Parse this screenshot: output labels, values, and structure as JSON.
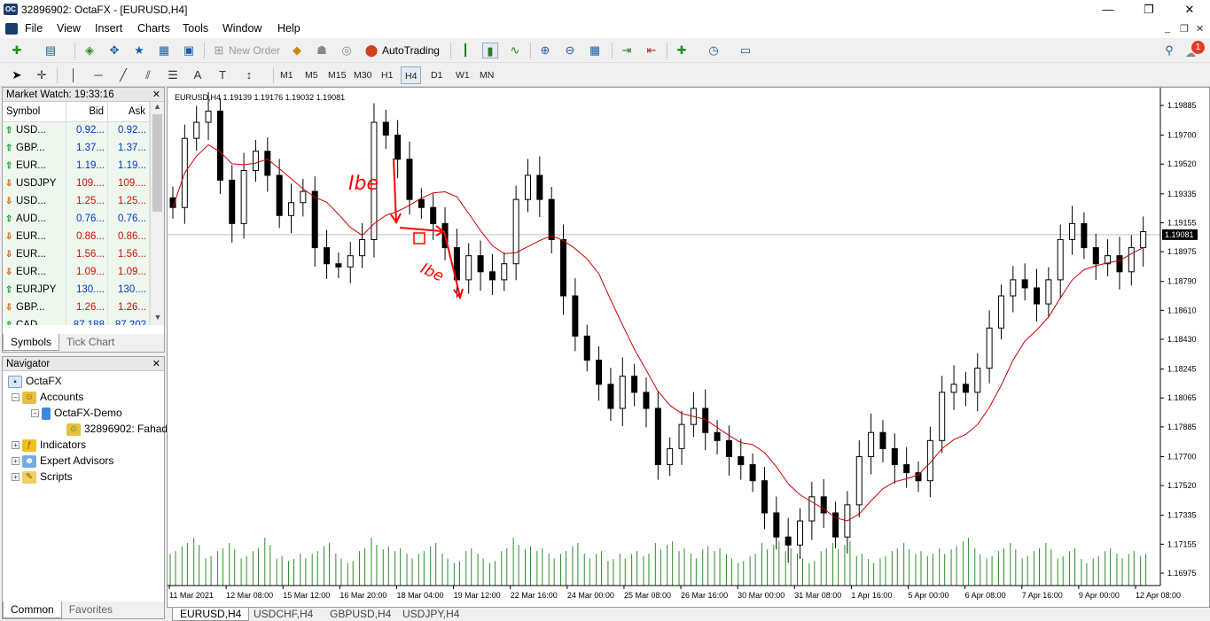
{
  "window": {
    "title": "32896902: OctaFX - [EURUSD,H4]",
    "app_icon_text": "OC",
    "controls": {
      "minimize": "—",
      "maximize": "❐",
      "close": "✕"
    }
  },
  "menu": {
    "items": [
      "File",
      "View",
      "Insert",
      "Charts",
      "Tools",
      "Window",
      "Help"
    ],
    "mdi": {
      "minimize": "_",
      "restore": "❐",
      "close": "✕"
    }
  },
  "toolbar": {
    "new_order_label": "New Order",
    "autotrading_label": "AutoTrading",
    "notification_count": "1",
    "timeframes": [
      "M1",
      "M5",
      "M15",
      "M30",
      "H1",
      "H4",
      "D1",
      "W1",
      "MN"
    ],
    "active_timeframe": "H4"
  },
  "market_watch": {
    "title": "Market Watch: 19:33:16",
    "columns": [
      "Symbol",
      "Bid",
      "Ask"
    ],
    "rows": [
      {
        "symbol": "USD...",
        "bid": "0.92...",
        "ask": "0.92...",
        "dir": "up",
        "color": "blue"
      },
      {
        "symbol": "GBP...",
        "bid": "1.37...",
        "ask": "1.37...",
        "dir": "up",
        "color": "blue"
      },
      {
        "symbol": "EUR...",
        "bid": "1.19...",
        "ask": "1.19...",
        "dir": "up",
        "color": "blue"
      },
      {
        "symbol": "USDJPY",
        "bid": "109....",
        "ask": "109....",
        "dir": "down",
        "color": "red"
      },
      {
        "symbol": "USD...",
        "bid": "1.25...",
        "ask": "1.25...",
        "dir": "down",
        "color": "red"
      },
      {
        "symbol": "AUD...",
        "bid": "0.76...",
        "ask": "0.76...",
        "dir": "up",
        "color": "blue"
      },
      {
        "symbol": "EUR...",
        "bid": "0.86...",
        "ask": "0.86...",
        "dir": "down",
        "color": "red"
      },
      {
        "symbol": "EUR...",
        "bid": "1.56...",
        "ask": "1.56...",
        "dir": "down",
        "color": "red"
      },
      {
        "symbol": "EUR...",
        "bid": "1.09...",
        "ask": "1.09...",
        "dir": "down",
        "color": "red"
      },
      {
        "symbol": "EURJPY",
        "bid": "130....",
        "ask": "130....",
        "dir": "up",
        "color": "blue"
      },
      {
        "symbol": "GBP...",
        "bid": "1.26...",
        "ask": "1.26...",
        "dir": "down",
        "color": "red"
      },
      {
        "symbol": "CAD...",
        "bid": "87.188",
        "ask": "87.202",
        "dir": "up",
        "color": "blue"
      }
    ],
    "tabs": [
      "Symbols",
      "Tick Chart"
    ]
  },
  "navigator": {
    "title": "Navigator",
    "root": "OctaFX",
    "accounts": "Accounts",
    "account_name": "OctaFX-Demo",
    "account_user": "32896902: Fahad",
    "indicators": "Indicators",
    "expert_advisors": "Expert Advisors",
    "scripts": "Scripts",
    "tabs": [
      "Common",
      "Favorites"
    ]
  },
  "chart_data": {
    "type": "candlestick",
    "symbol_header": "EURUSD,H4  1.19139 1.19176 1.19032 1.19081",
    "current_price_label": "1.19081",
    "current_price": 1.19081,
    "price_axis_ticks": [
      "1.19885",
      "1.19700",
      "1.19520",
      "1.19335",
      "1.19155",
      "1.18975",
      "1.18790",
      "1.18610",
      "1.18430",
      "1.18245",
      "1.18065",
      "1.17885",
      "1.17700",
      "1.17520",
      "1.17335",
      "1.17155",
      "1.16975"
    ],
    "ylim": [
      1.16975,
      1.19885
    ],
    "time_axis_labels": [
      "11 Mar 2021",
      "12 Mar 08:00",
      "15 Mar 12:00",
      "16 Mar 20:00",
      "18 Mar 04:00",
      "19 Mar 12:00",
      "22 Mar 16:00",
      "24 Mar 00:00",
      "25 Mar 08:00",
      "26 Mar 16:00",
      "30 Mar 00:00",
      "31 Mar 08:00",
      "1 Apr 16:00",
      "5 Apr 00:00",
      "6 Apr 08:00",
      "7 Apr 16:00",
      "9 Apr 00:00",
      "12 Apr 08:00"
    ],
    "moving_average": "red line",
    "annotations": [
      "Ibe",
      "Ibe"
    ],
    "close_prices": [
      1.1925,
      1.1968,
      1.1978,
      1.1985,
      1.1942,
      1.1915,
      1.1948,
      1.196,
      1.1945,
      1.192,
      1.1928,
      1.1935,
      1.19,
      1.189,
      1.1888,
      1.1895,
      1.1905,
      1.1978,
      1.197,
      1.1955,
      1.193,
      1.1925,
      1.1915,
      1.19,
      1.188,
      1.1895,
      1.1885,
      1.188,
      1.189,
      1.193,
      1.1945,
      1.193,
      1.1905,
      1.187,
      1.1845,
      1.183,
      1.1815,
      1.18,
      1.182,
      1.181,
      1.18,
      1.1765,
      1.1775,
      1.179,
      1.18,
      1.1785,
      1.178,
      1.177,
      1.1765,
      1.1755,
      1.1735,
      1.172,
      1.1715,
      1.173,
      1.1745,
      1.1735,
      1.172,
      1.174,
      1.177,
      1.1785,
      1.1775,
      1.1765,
      1.176,
      1.1755,
      1.178,
      1.181,
      1.1815,
      1.181,
      1.1825,
      1.185,
      1.187,
      1.188,
      1.1875,
      1.1865,
      1.188,
      1.1905,
      1.1915,
      1.19,
      1.189,
      1.1895,
      1.1885,
      1.19,
      1.191
    ],
    "volume_relative": [
      0.7,
      0.8,
      0.9,
      0.6,
      0.7,
      0.8,
      0.6,
      0.7,
      0.9,
      0.6,
      0.5,
      0.6,
      0.7,
      0.8,
      0.6,
      0.5,
      0.7,
      0.9,
      0.8,
      0.7,
      0.6,
      0.7,
      0.8,
      0.6,
      0.5,
      0.7,
      0.6,
      0.5,
      0.7,
      0.9,
      0.8,
      0.7,
      0.6,
      0.7,
      0.8,
      0.6,
      0.7,
      0.5,
      0.6,
      0.7,
      0.6,
      0.8,
      0.9,
      0.7,
      0.6,
      0.8,
      0.7,
      0.6,
      0.5,
      0.6,
      0.8,
      0.9,
      0.7,
      0.6,
      0.5,
      0.7,
      0.8,
      0.9,
      0.6,
      0.5,
      0.6,
      0.7,
      0.8,
      0.7,
      0.6,
      0.7,
      0.8,
      0.9,
      0.7,
      0.6,
      0.7,
      0.8,
      0.6,
      0.7,
      0.8,
      0.6,
      0.7,
      0.5,
      0.6,
      0.7,
      0.6,
      0.7,
      0.6
    ]
  },
  "chart_tabs": [
    "EURUSD,H4",
    "USDCHF,H4",
    "GBPUSD,H4",
    "USDJPY,H4"
  ],
  "chart_active_tab": "EURUSD,H4",
  "colors": {
    "bull_candle": "#ffffff",
    "bear_candle": "#000000",
    "ma_line": "#cc0000",
    "volume": "#2e8b2e",
    "annotation": "#ff0000",
    "price_tag": "#000000"
  }
}
